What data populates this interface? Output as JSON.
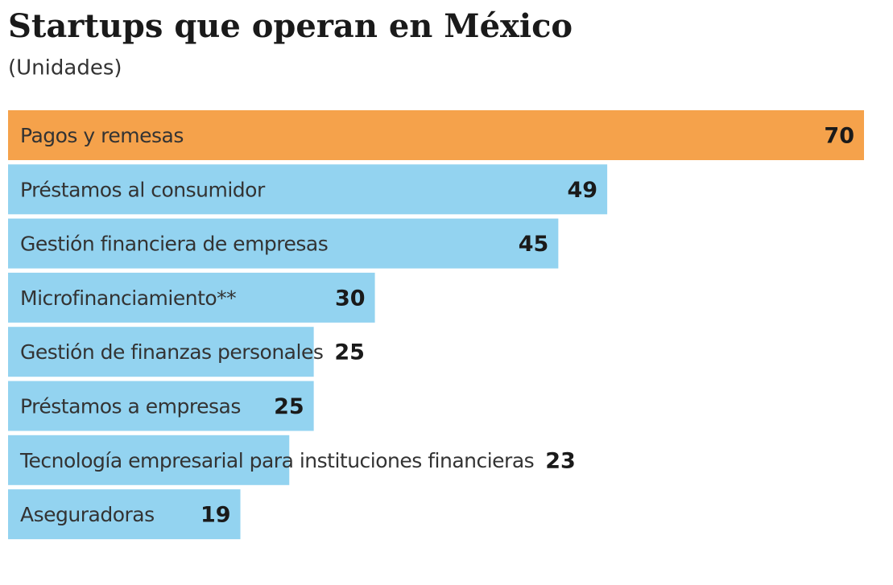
{
  "chart_data": {
    "type": "bar",
    "orientation": "horizontal",
    "title": "Startups que operan en México",
    "subtitle": "(Unidades)",
    "categories": [
      "Pagos y remesas",
      "Préstamos al consumidor",
      "Gestión financiera de empresas",
      "Microfinanciamiento**",
      "Gestión de finanzas personales",
      "Préstamos a empresas",
      "Tecnología empresarial para instituciones financieras",
      "Aseguradoras"
    ],
    "values": [
      70,
      49,
      45,
      30,
      25,
      25,
      23,
      19
    ],
    "colors": [
      "#f5a24b",
      "#93d3f0",
      "#93d3f0",
      "#93d3f0",
      "#93d3f0",
      "#93d3f0",
      "#93d3f0",
      "#93d3f0"
    ],
    "xlim": [
      0,
      70
    ]
  }
}
